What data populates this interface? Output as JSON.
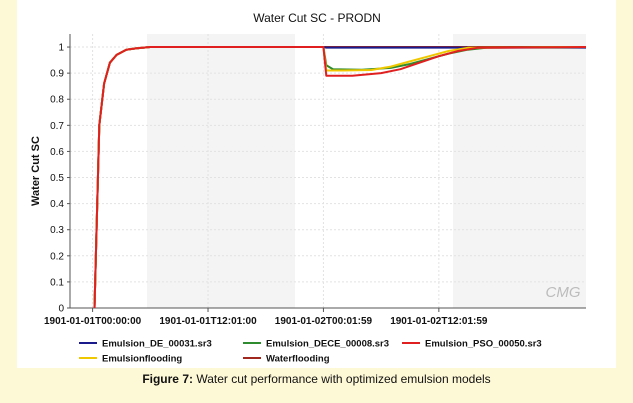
{
  "caption": {
    "label": "Figure 7:",
    "text": "Water cut performance with optimized emulsion models"
  },
  "watermark": "CMG",
  "chart_data": {
    "type": "line",
    "title": "Water Cut SC - PRODN",
    "xlabel": "",
    "ylabel": "Water Cut SC",
    "x_ticks": [
      "1901-01-01T00:00:00",
      "1901-01-01T12:01:00",
      "1901-01-02T00:01:59",
      "1901-01-02T12:01:59"
    ],
    "x_range_hours": [
      -2.35,
      51.3
    ],
    "ylim": [
      0,
      1.05
    ],
    "y_ticks": [
      "0",
      "0.1",
      "0.2",
      "0.3",
      "0.4",
      "0.5",
      "0.6",
      "0.7",
      "0.8",
      "0.9",
      "1"
    ],
    "legend_position": "bottom",
    "series": [
      {
        "name": "Emulsion_DE_00031.sr3",
        "color": "#1a1a8c",
        "x": [
          0.2,
          0.7,
          1.2,
          1.8,
          2.5,
          3.5,
          4.5,
          6,
          8,
          24,
          24.3,
          27,
          30,
          33,
          36,
          39,
          51.3
        ],
        "y": [
          0,
          0.7,
          0.86,
          0.94,
          0.97,
          0.99,
          0.995,
          1,
          1,
          1,
          0.998,
          0.998,
          0.998,
          0.998,
          0.998,
          0.998,
          0.998
        ]
      },
      {
        "name": "Emulsion_DECE_00008.sr3",
        "color": "#2e8b2e",
        "x": [
          0.2,
          0.7,
          1.2,
          1.8,
          2.5,
          3.5,
          4.5,
          6,
          8,
          24,
          24.3,
          25,
          28,
          31,
          33,
          35,
          37,
          39,
          41,
          51.3
        ],
        "y": [
          0,
          0.7,
          0.86,
          0.94,
          0.97,
          0.99,
          0.995,
          1,
          1,
          1,
          0.93,
          0.915,
          0.913,
          0.92,
          0.935,
          0.955,
          0.975,
          0.99,
          0.998,
          1
        ]
      },
      {
        "name": "Emulsion_PSO_00050.sr3",
        "color": "#e02020",
        "x": [
          0.2,
          0.7,
          1.2,
          1.8,
          2.5,
          3.5,
          4.5,
          6,
          8,
          24,
          24.3,
          27,
          30,
          32,
          34,
          36,
          38,
          40,
          51.3
        ],
        "y": [
          0,
          0.7,
          0.86,
          0.94,
          0.97,
          0.99,
          0.995,
          1,
          1,
          1,
          0.89,
          0.89,
          0.9,
          0.915,
          0.94,
          0.965,
          0.985,
          0.997,
          1
        ]
      },
      {
        "name": "Emulsionflooding",
        "color": "#f0c800",
        "x": [
          0.2,
          0.7,
          1.2,
          1.8,
          2.5,
          3.5,
          4.5,
          6,
          8,
          24,
          24.3,
          26,
          29,
          31,
          33,
          35,
          37,
          39,
          51.3
        ],
        "y": [
          0,
          0.7,
          0.86,
          0.94,
          0.97,
          0.99,
          0.995,
          1,
          1,
          1,
          0.91,
          0.91,
          0.912,
          0.925,
          0.945,
          0.965,
          0.985,
          0.997,
          1
        ]
      },
      {
        "name": "Waterflooding",
        "color": "#a0281e",
        "x": [
          0.2,
          0.7,
          1.2,
          1.8,
          2.5,
          3.5,
          4.5,
          6,
          8,
          51.3
        ],
        "y": [
          0,
          0.7,
          0.86,
          0.94,
          0.97,
          0.99,
          0.995,
          1,
          1,
          1
        ]
      }
    ]
  }
}
